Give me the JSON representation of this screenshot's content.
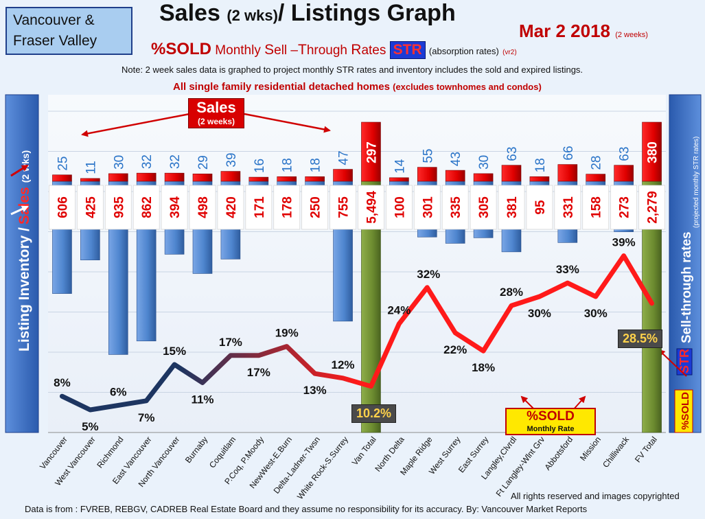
{
  "header": {
    "region_line1": "Vancouver &",
    "region_line2": "Fraser Valley",
    "title": "Sales",
    "title_small": "(2 wks)",
    "title_rest": "/ Listings Graph",
    "date": "Mar 2  2018",
    "date_sub": "(2 weeks)",
    "subtitle_sold": "%SOLD",
    "subtitle_a": "Monthly ",
    "subtitle_a_cap": "S",
    "subtitle_b": "ell –",
    "subtitle_b_cap": "T",
    "subtitle_c": "hrough ",
    "subtitle_c_cap": "R",
    "subtitle_d": "ates",
    "str_badge": "STR",
    "absorption": "(absorption rates)",
    "vr2": "(vr2)",
    "note": "Note: 2 week sales data is graphed to project monthly STR rates and inventory includes the sold and expired listings.",
    "scope": "All single family residential detached homes",
    "scope_small": "(excludes townhomes and condos)"
  },
  "annotations": {
    "sales_box_line1": "Sales",
    "sales_box_line2": "(2 weeks)",
    "van_total_pct": "10.2%",
    "fv_total_pct": "28.5%",
    "sold_box_line1": "%SOLD",
    "sold_box_line2": "Monthly Rate"
  },
  "left_axis": {
    "label_a": "Listing Inventory /",
    "label_b": "Sales",
    "label_c": "(2  wks)"
  },
  "right_axis": {
    "label_a": "Sell-through rates",
    "label_b": "(projected  monthly STR rates)",
    "label_str": "STR",
    "label_sold": "%SOLD"
  },
  "footer": {
    "copyright": "All rights reserved and  images copyrighted",
    "source": "Data is from : FVREB, REBGV, CADREB Real Estate Board and they assume  no responsibility for its accuracy.  By:  Vancouver Market Reports"
  },
  "colors": {
    "sales_bar": "#e00000",
    "listing_bar": "#4f86cf",
    "total_bar": "#6b8a2f",
    "str_line_low": "#1d3561",
    "str_line_high": "#ff1a1a",
    "panel_bg": "#f2f6fb",
    "axis_panel": "#2f62b8"
  },
  "chart_data": {
    "type": "bar",
    "categories": [
      "Vancouver",
      "West Vancouver",
      "Richmond",
      "East Vancouver",
      "North Vancouver",
      "Burnaby",
      "Coquitlam",
      "P.Coq, P.Moody",
      "NewWest-E.Burn",
      "Delta-Ladner-Twsn",
      "White Rock-S.Surrey",
      "Van Total",
      "North Delta",
      "Maple Ridge",
      "West Surrey",
      "East Surrey",
      "Langley,Clvrdl",
      "Ft Langley-Wlnt Grv",
      "Abbotsford",
      "Mission",
      "Chilliwack",
      "FV Total"
    ],
    "sales": [
      25,
      11,
      30,
      32,
      32,
      29,
      39,
      16,
      18,
      18,
      47,
      297,
      14,
      55,
      43,
      30,
      63,
      18,
      66,
      28,
      63,
      380
    ],
    "listings": [
      606,
      425,
      935,
      862,
      394,
      498,
      420,
      171,
      178,
      250,
      755,
      5494,
      100,
      301,
      335,
      305,
      381,
      95,
      331,
      158,
      273,
      2279
    ],
    "listing_labels": [
      "606",
      "425",
      "935",
      "862",
      "394",
      "498",
      "420",
      "171",
      "178",
      "250",
      "755",
      "5,494",
      "100",
      "301",
      "335",
      "305",
      "381",
      "95",
      "331",
      "158",
      "273",
      "2,279"
    ],
    "str_percent": [
      8,
      5,
      6,
      7,
      15,
      11,
      17,
      17,
      19,
      13,
      12,
      10.2,
      24,
      32,
      22,
      18,
      28,
      30,
      33,
      30,
      39,
      28.5
    ],
    "str_labels": [
      "8%",
      "5%",
      "6%",
      "7%",
      "15%",
      "11%",
      "17%",
      "17%",
      "19%",
      "13%",
      "12%",
      "",
      "24%",
      "32%",
      "22%",
      "18%",
      "28%",
      "30%",
      "33%",
      "30%",
      "39%",
      ""
    ]
  }
}
